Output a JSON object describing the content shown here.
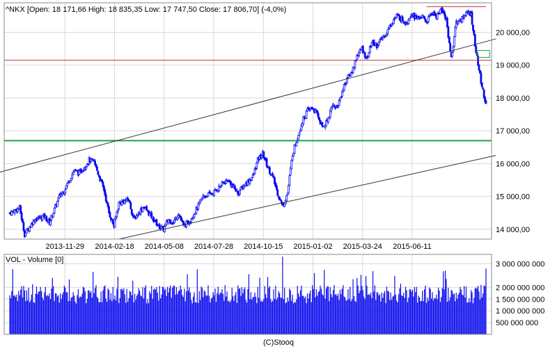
{
  "chart_data": [
    {
      "type": "candlestick",
      "title": "^NKX [Open: 18 171,66  High: 18 835,35  Low: 17 747,50  Close: 17 806,70] (-4,0%)",
      "x_tick_labels": [
        "2013-11-29",
        "2014-02-18",
        "2014-05-08",
        "2014-07-28",
        "2014-10-15",
        "2015-01-02",
        "2015-03-24",
        "2015-06-11"
      ],
      "y_tick_labels": [
        "14 000,00",
        "15 000,00",
        "16 000,00",
        "17 000,00",
        "18 000,00",
        "19 000,00",
        "20 000,00"
      ],
      "y_ticks": [
        14000,
        15000,
        16000,
        17000,
        18000,
        19000,
        20000
      ],
      "ylim": [
        13700,
        20900
      ],
      "x_range_weeks": 96,
      "grid": true,
      "close_path": [
        [
          0,
          14500
        ],
        [
          2,
          14650
        ],
        [
          3,
          13850
        ],
        [
          5,
          14300
        ],
        [
          7,
          14400
        ],
        [
          8,
          14200
        ],
        [
          10,
          15000
        ],
        [
          11,
          15200
        ],
        [
          13,
          15800
        ],
        [
          14,
          15700
        ],
        [
          16,
          16100
        ],
        [
          17,
          16050
        ],
        [
          19,
          15200
        ],
        [
          20,
          14500
        ],
        [
          21,
          14100
        ],
        [
          22,
          14800
        ],
        [
          24,
          14900
        ],
        [
          25,
          14300
        ],
        [
          27,
          14700
        ],
        [
          29,
          14300
        ],
        [
          30,
          14100
        ],
        [
          31,
          14000
        ],
        [
          32,
          14300
        ],
        [
          33,
          14200
        ],
        [
          34,
          14500
        ],
        [
          35,
          14100
        ],
        [
          36,
          14200
        ],
        [
          38,
          14700
        ],
        [
          39,
          15000
        ],
        [
          41,
          15100
        ],
        [
          43,
          15400
        ],
        [
          44,
          15500
        ],
        [
          45,
          15300
        ],
        [
          46,
          15100
        ],
        [
          47,
          15300
        ],
        [
          49,
          15600
        ],
        [
          50,
          16100
        ],
        [
          51,
          16300
        ],
        [
          52,
          15900
        ],
        [
          53,
          15600
        ],
        [
          54,
          15100
        ],
        [
          55,
          14700
        ],
        [
          56,
          15100
        ],
        [
          57,
          16300
        ],
        [
          58,
          16800
        ],
        [
          59,
          17300
        ],
        [
          60,
          17600
        ],
        [
          61,
          17700
        ],
        [
          62,
          17500
        ],
        [
          63,
          17100
        ],
        [
          64,
          17300
        ],
        [
          65,
          17800
        ],
        [
          66,
          17700
        ],
        [
          67,
          18200
        ],
        [
          68,
          18600
        ],
        [
          69,
          18800
        ],
        [
          70,
          19300
        ],
        [
          71,
          19500
        ],
        [
          72,
          19200
        ],
        [
          73,
          19700
        ],
        [
          74,
          19600
        ],
        [
          75,
          19800
        ],
        [
          76,
          20000
        ],
        [
          77,
          20300
        ],
        [
          78,
          20500
        ],
        [
          79,
          20400
        ],
        [
          80,
          20300
        ],
        [
          81,
          20600
        ],
        [
          82,
          20400
        ],
        [
          83,
          20500
        ],
        [
          84,
          20300
        ],
        [
          85,
          20600
        ],
        [
          86,
          20500
        ],
        [
          87,
          20700
        ],
        [
          88,
          20400
        ],
        [
          89,
          19200
        ],
        [
          90,
          20300
        ],
        [
          91,
          20400
        ],
        [
          92,
          20600
        ],
        [
          93,
          20550
        ],
        [
          94,
          19400
        ],
        [
          95,
          18500
        ],
        [
          96,
          17800
        ]
      ],
      "horizontal_lines": [
        {
          "value": 16700,
          "color": "#1aa34a"
        },
        {
          "value": 19150,
          "color": "#cc3333"
        },
        {
          "from_x": 84,
          "to_x": 96,
          "value": 20780,
          "color": "#cc3333"
        }
      ],
      "trend_lines": [
        {
          "points": [
            [
              -3,
              15700
            ],
            [
              98,
              19800
            ]
          ],
          "color": "#333333"
        },
        {
          "points": [
            [
              22,
              13700
            ],
            [
              98,
              16250
            ]
          ],
          "color": "#333333"
        }
      ],
      "colors": {
        "candle": "#0a0aee",
        "grid": "#d9d9d9",
        "axis": "#888888"
      }
    },
    {
      "type": "bar",
      "series": [
        {
          "name": "VOL - Volume [0]",
          "color": "#0a0aee"
        }
      ],
      "title": "VOL - Volume [0]",
      "y_tick_labels": [
        "500 000 000",
        "1 000 000 000",
        "1 500 000 000",
        "2 000 000 000",
        "3 000 000 000"
      ],
      "y_ticks": [
        500000000,
        1000000000,
        1500000000,
        2000000000,
        3000000000
      ],
      "ylim": [
        0,
        3400000000
      ],
      "typical_volume": 1750000000,
      "footer": "(C)Stooq"
    }
  ]
}
